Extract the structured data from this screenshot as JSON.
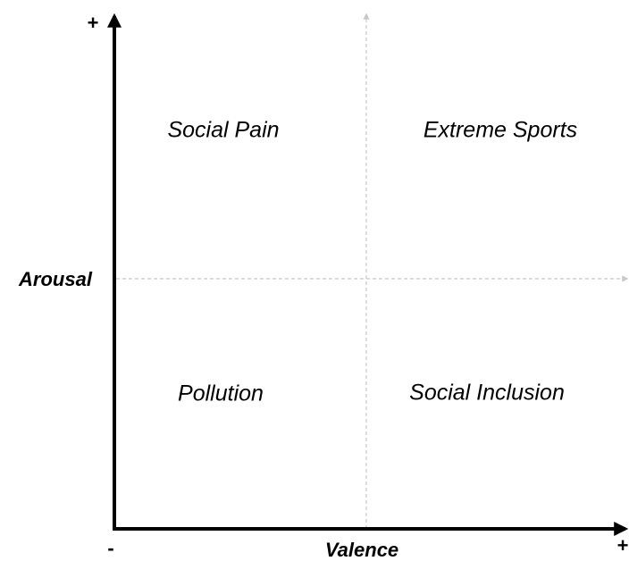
{
  "axes": {
    "y": {
      "label": "Arousal",
      "high": "+"
    },
    "x": {
      "label": "Valence",
      "low": "-",
      "high": "+"
    }
  },
  "quadrants": [
    {
      "label": "Social Pain"
    },
    {
      "label": "Extreme Sports"
    },
    {
      "label": "Pollution"
    },
    {
      "label": "Social Inclusion"
    }
  ]
}
